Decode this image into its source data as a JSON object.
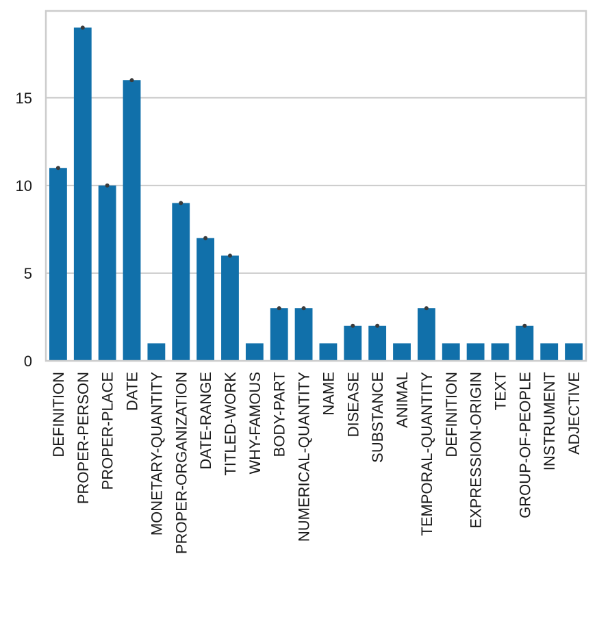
{
  "chart_data": {
    "type": "bar",
    "title": "",
    "xlabel": "",
    "ylabel": "",
    "categories": [
      "DEFINITION",
      "PROPER-PERSON",
      "PROPER-PLACE",
      "DATE",
      "MONETARY-QUANTITY",
      "PROPER-ORGANIZATION",
      "DATE-RANGE",
      "TITLED-WORK",
      "WHY-FAMOUS",
      "BODY-PART",
      "NUMERICAL-QUANTITY",
      "NAME",
      "DISEASE",
      "SUBSTANCE",
      "ANIMAL",
      "TEMPORAL-QUANTITY",
      "DEFINITION",
      "EXPRESSION-ORIGIN",
      "TEXT",
      "GROUP-OF-PEOPLE",
      "INSTRUMENT",
      "ADJECTIVE"
    ],
    "values": [
      11,
      19,
      10,
      16,
      1,
      9,
      7,
      6,
      1,
      3,
      3,
      1,
      2,
      2,
      1,
      3,
      1,
      1,
      1,
      2,
      1,
      1
    ],
    "ylim": [
      0,
      19.95
    ],
    "yticks": [
      0,
      5,
      10,
      15
    ],
    "ytick_labels": [
      "0",
      "5",
      "10",
      "15"
    ],
    "grid": true,
    "bar_color": "#1170aa",
    "grid_color": "#cccccc",
    "error_dot_color": "#3b3b3b"
  }
}
